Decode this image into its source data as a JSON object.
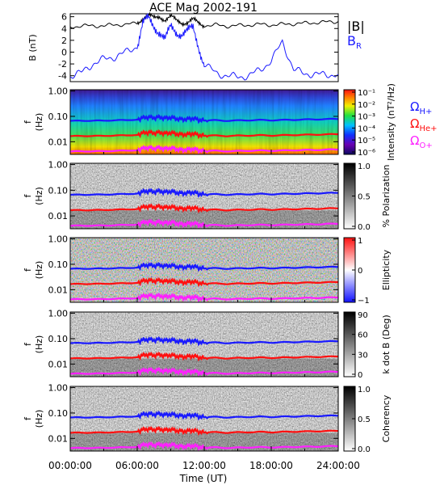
{
  "figure": {
    "title": "ACE Mag 2002-191",
    "time_ticks": [
      "00:00:00",
      "06:00:00",
      "12:00:00",
      "18:00:00",
      "24:00:00"
    ],
    "xlabel": "Time (UT)"
  },
  "colors": {
    "black": "#000000",
    "hplus": "#1a1aff",
    "heplus": "#ff1010",
    "oplus": "#ff20ff"
  },
  "chart_data": [
    {
      "type": "line",
      "panel": "magnetic-field",
      "ylabel": "B (nT)",
      "yticks": [
        "6",
        "4",
        "2",
        "0",
        "-2",
        "-4"
      ],
      "ylim": [
        -5,
        6.5
      ],
      "x_hours": [
        0,
        1,
        2,
        3,
        4,
        5,
        6,
        6.5,
        7,
        7.5,
        8,
        8.5,
        9,
        9.5,
        10,
        10.5,
        11,
        11.5,
        12,
        13,
        14,
        15,
        16,
        17,
        18,
        19,
        20,
        21,
        22,
        23,
        24
      ],
      "series": [
        {
          "name": "|B|",
          "values": [
            4.3,
            4.4,
            4.5,
            4.4,
            4.7,
            4.6,
            5.0,
            5.8,
            6.2,
            5.7,
            6.1,
            5.5,
            6.0,
            5.3,
            5.0,
            5.1,
            5.5,
            4.8,
            4.5,
            4.6,
            4.4,
            4.5,
            4.6,
            4.7,
            4.6,
            4.7,
            4.8,
            4.9,
            5.0,
            5.1,
            5.2
          ]
        },
        {
          "name": "B_R",
          "values": [
            -4.0,
            -3.5,
            -2.0,
            -1.2,
            -0.8,
            0.0,
            1.0,
            4.8,
            5.6,
            4.5,
            3.5,
            2.0,
            4.2,
            3.5,
            3.2,
            3.4,
            4.0,
            1.0,
            -2.0,
            -3.5,
            -4.0,
            -4.2,
            -4.0,
            -3.0,
            -1.5,
            1.8,
            -3.0,
            -3.6,
            -3.8,
            -3.8,
            -3.8
          ]
        }
      ],
      "legend": [
        "|B|",
        "B_R"
      ]
    },
    {
      "type": "heatmap",
      "panel": "intensity",
      "ylabel": "f (Hz)",
      "yticks": [
        "1.00",
        "0.10",
        "0.01"
      ],
      "colorbar_label": "Intensity (nT²/Hz)",
      "colorbar_ticks": [
        "10⁻¹",
        "10⁻²",
        "10⁻³",
        "10⁻⁴",
        "10⁻⁵",
        "10⁻⁶"
      ],
      "gyro_labels": [
        "ΩH+",
        "ΩHe+",
        "ΩO+"
      ]
    },
    {
      "type": "heatmap",
      "panel": "polarization",
      "ylabel": "f (Hz)",
      "yticks": [
        "1.00",
        "0.10",
        "0.01"
      ],
      "colorbar_label": "% Polarization",
      "colorbar_ticks": [
        "1.0",
        "0.5",
        "0.0"
      ]
    },
    {
      "type": "heatmap",
      "panel": "ellipticity",
      "ylabel": "f (Hz)",
      "yticks": [
        "1.00",
        "0.10",
        "0.01"
      ],
      "colorbar_label": "Ellipticity",
      "colorbar_ticks": [
        "1",
        "0",
        "−1"
      ]
    },
    {
      "type": "heatmap",
      "panel": "kdotb",
      "ylabel": "f (Hz)",
      "yticks": [
        "1.00",
        "0.10",
        "0.01"
      ],
      "colorbar_label": "k dot B (Deg)",
      "colorbar_ticks": [
        "90",
        "60",
        "30",
        "0"
      ]
    },
    {
      "type": "heatmap",
      "panel": "coherency",
      "ylabel": "f (Hz)",
      "yticks": [
        "1.00",
        "0.10",
        "0.01"
      ],
      "colorbar_label": "Coherency",
      "colorbar_ticks": [
        "1.0",
        "0.5",
        "0.0"
      ]
    }
  ],
  "gyrofrequency_lines": {
    "x_hours": [
      0,
      1,
      2,
      3,
      4,
      5,
      6,
      6.5,
      7,
      7.5,
      8,
      8.5,
      9,
      9.5,
      10,
      10.5,
      11,
      11.5,
      12,
      13,
      14,
      15,
      16,
      17,
      18,
      19,
      20,
      21,
      22,
      23,
      24
    ],
    "hplus_hz": [
      0.066,
      0.067,
      0.068,
      0.067,
      0.071,
      0.07,
      0.076,
      0.088,
      0.094,
      0.087,
      0.093,
      0.084,
      0.091,
      0.081,
      0.076,
      0.078,
      0.084,
      0.073,
      0.069,
      0.07,
      0.067,
      0.069,
      0.07,
      0.072,
      0.07,
      0.072,
      0.073,
      0.075,
      0.076,
      0.078,
      0.079
    ],
    "heplus_hz": [
      0.0165,
      0.0168,
      0.017,
      0.0168,
      0.0178,
      0.0175,
      0.019,
      0.022,
      0.0235,
      0.0218,
      0.0233,
      0.021,
      0.0228,
      0.0203,
      0.019,
      0.0195,
      0.021,
      0.0183,
      0.0173,
      0.0175,
      0.0168,
      0.0173,
      0.0175,
      0.018,
      0.0175,
      0.018,
      0.0183,
      0.0188,
      0.019,
      0.0195,
      0.0198
    ],
    "oplus_hz": [
      0.0041,
      0.0042,
      0.0042,
      0.0042,
      0.0044,
      0.0044,
      0.0047,
      0.0055,
      0.0059,
      0.0054,
      0.0058,
      0.0052,
      0.0057,
      0.0051,
      0.0047,
      0.0049,
      0.0052,
      0.0046,
      0.0043,
      0.0044,
      0.0042,
      0.0043,
      0.0044,
      0.0045,
      0.0044,
      0.0045,
      0.0046,
      0.0047,
      0.0047,
      0.0049,
      0.0049
    ]
  }
}
